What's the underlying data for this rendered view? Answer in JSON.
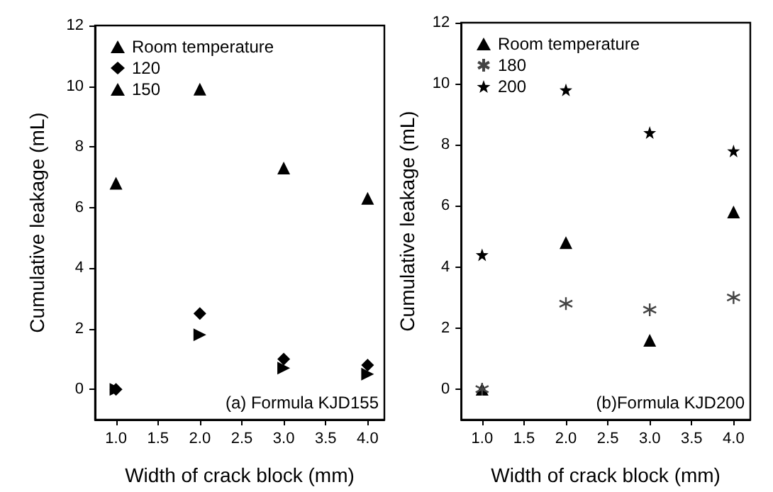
{
  "chart_data": [
    {
      "type": "scatter",
      "xlabel": "Width of crack block (mm)",
      "ylabel": "Cumulative leakage (mL)",
      "annotations": [
        "(a) Formula KJD155"
      ],
      "x": [
        1,
        2,
        3,
        4
      ],
      "xlim": [
        0.75,
        4.2
      ],
      "xticks": [
        {
          "value": 1,
          "label": "1.0"
        },
        1.5,
        {
          "value": 2,
          "label": "2.0"
        },
        2.5,
        {
          "value": 3,
          "label": "3.0"
        },
        3.5,
        {
          "value": 4,
          "label": "4.0"
        }
      ],
      "ylim": [
        -1,
        12
      ],
      "yticks": [
        0,
        2,
        4,
        6,
        8,
        10,
        12
      ],
      "grid": false,
      "legend": "top left",
      "series": [
        {
          "name": "Room temperature",
          "color": "#000000",
          "marker": "triangle-right",
          "values": [
            0,
            1.8,
            0.7,
            0.5
          ]
        },
        {
          "name": "120",
          "color": "#000000",
          "marker": "diamond",
          "values": [
            0,
            2.5,
            1.0,
            0.8
          ]
        },
        {
          "name": "150",
          "color": "#000000",
          "marker": "triangle",
          "values": [
            6.8,
            9.9,
            7.3,
            6.3
          ]
        }
      ]
    },
    {
      "type": "scatter",
      "xlabel": "Width of crack block (mm)",
      "ylabel": "Cumulative leakage (mL)",
      "annotations": [
        "(b)Formula KJD200"
      ],
      "x": [
        1,
        2,
        3,
        4
      ],
      "xlim": [
        0.75,
        4.2
      ],
      "xticks": [
        {
          "value": 1,
          "label": "1.0"
        },
        1.5,
        {
          "value": 2,
          "label": "2.0"
        },
        2.5,
        {
          "value": 3,
          "label": "3.0"
        },
        3.5,
        {
          "value": 4,
          "label": "4.0"
        }
      ],
      "ylim": [
        -1,
        12
      ],
      "yticks": [
        0,
        2,
        4,
        6,
        8,
        10,
        12
      ],
      "grid": false,
      "legend": "top left",
      "series": [
        {
          "name": "Room temperature",
          "color": "#000000",
          "marker": "triangle",
          "values": [
            0,
            4.8,
            1.6,
            5.8
          ]
        },
        {
          "name": "180",
          "color": "#444444",
          "marker": "cross",
          "values": [
            0,
            2.8,
            2.6,
            3.0
          ]
        },
        {
          "name": "200",
          "color": "#000000",
          "marker": "star",
          "values": [
            4.4,
            9.8,
            8.4,
            7.8
          ]
        }
      ]
    }
  ]
}
